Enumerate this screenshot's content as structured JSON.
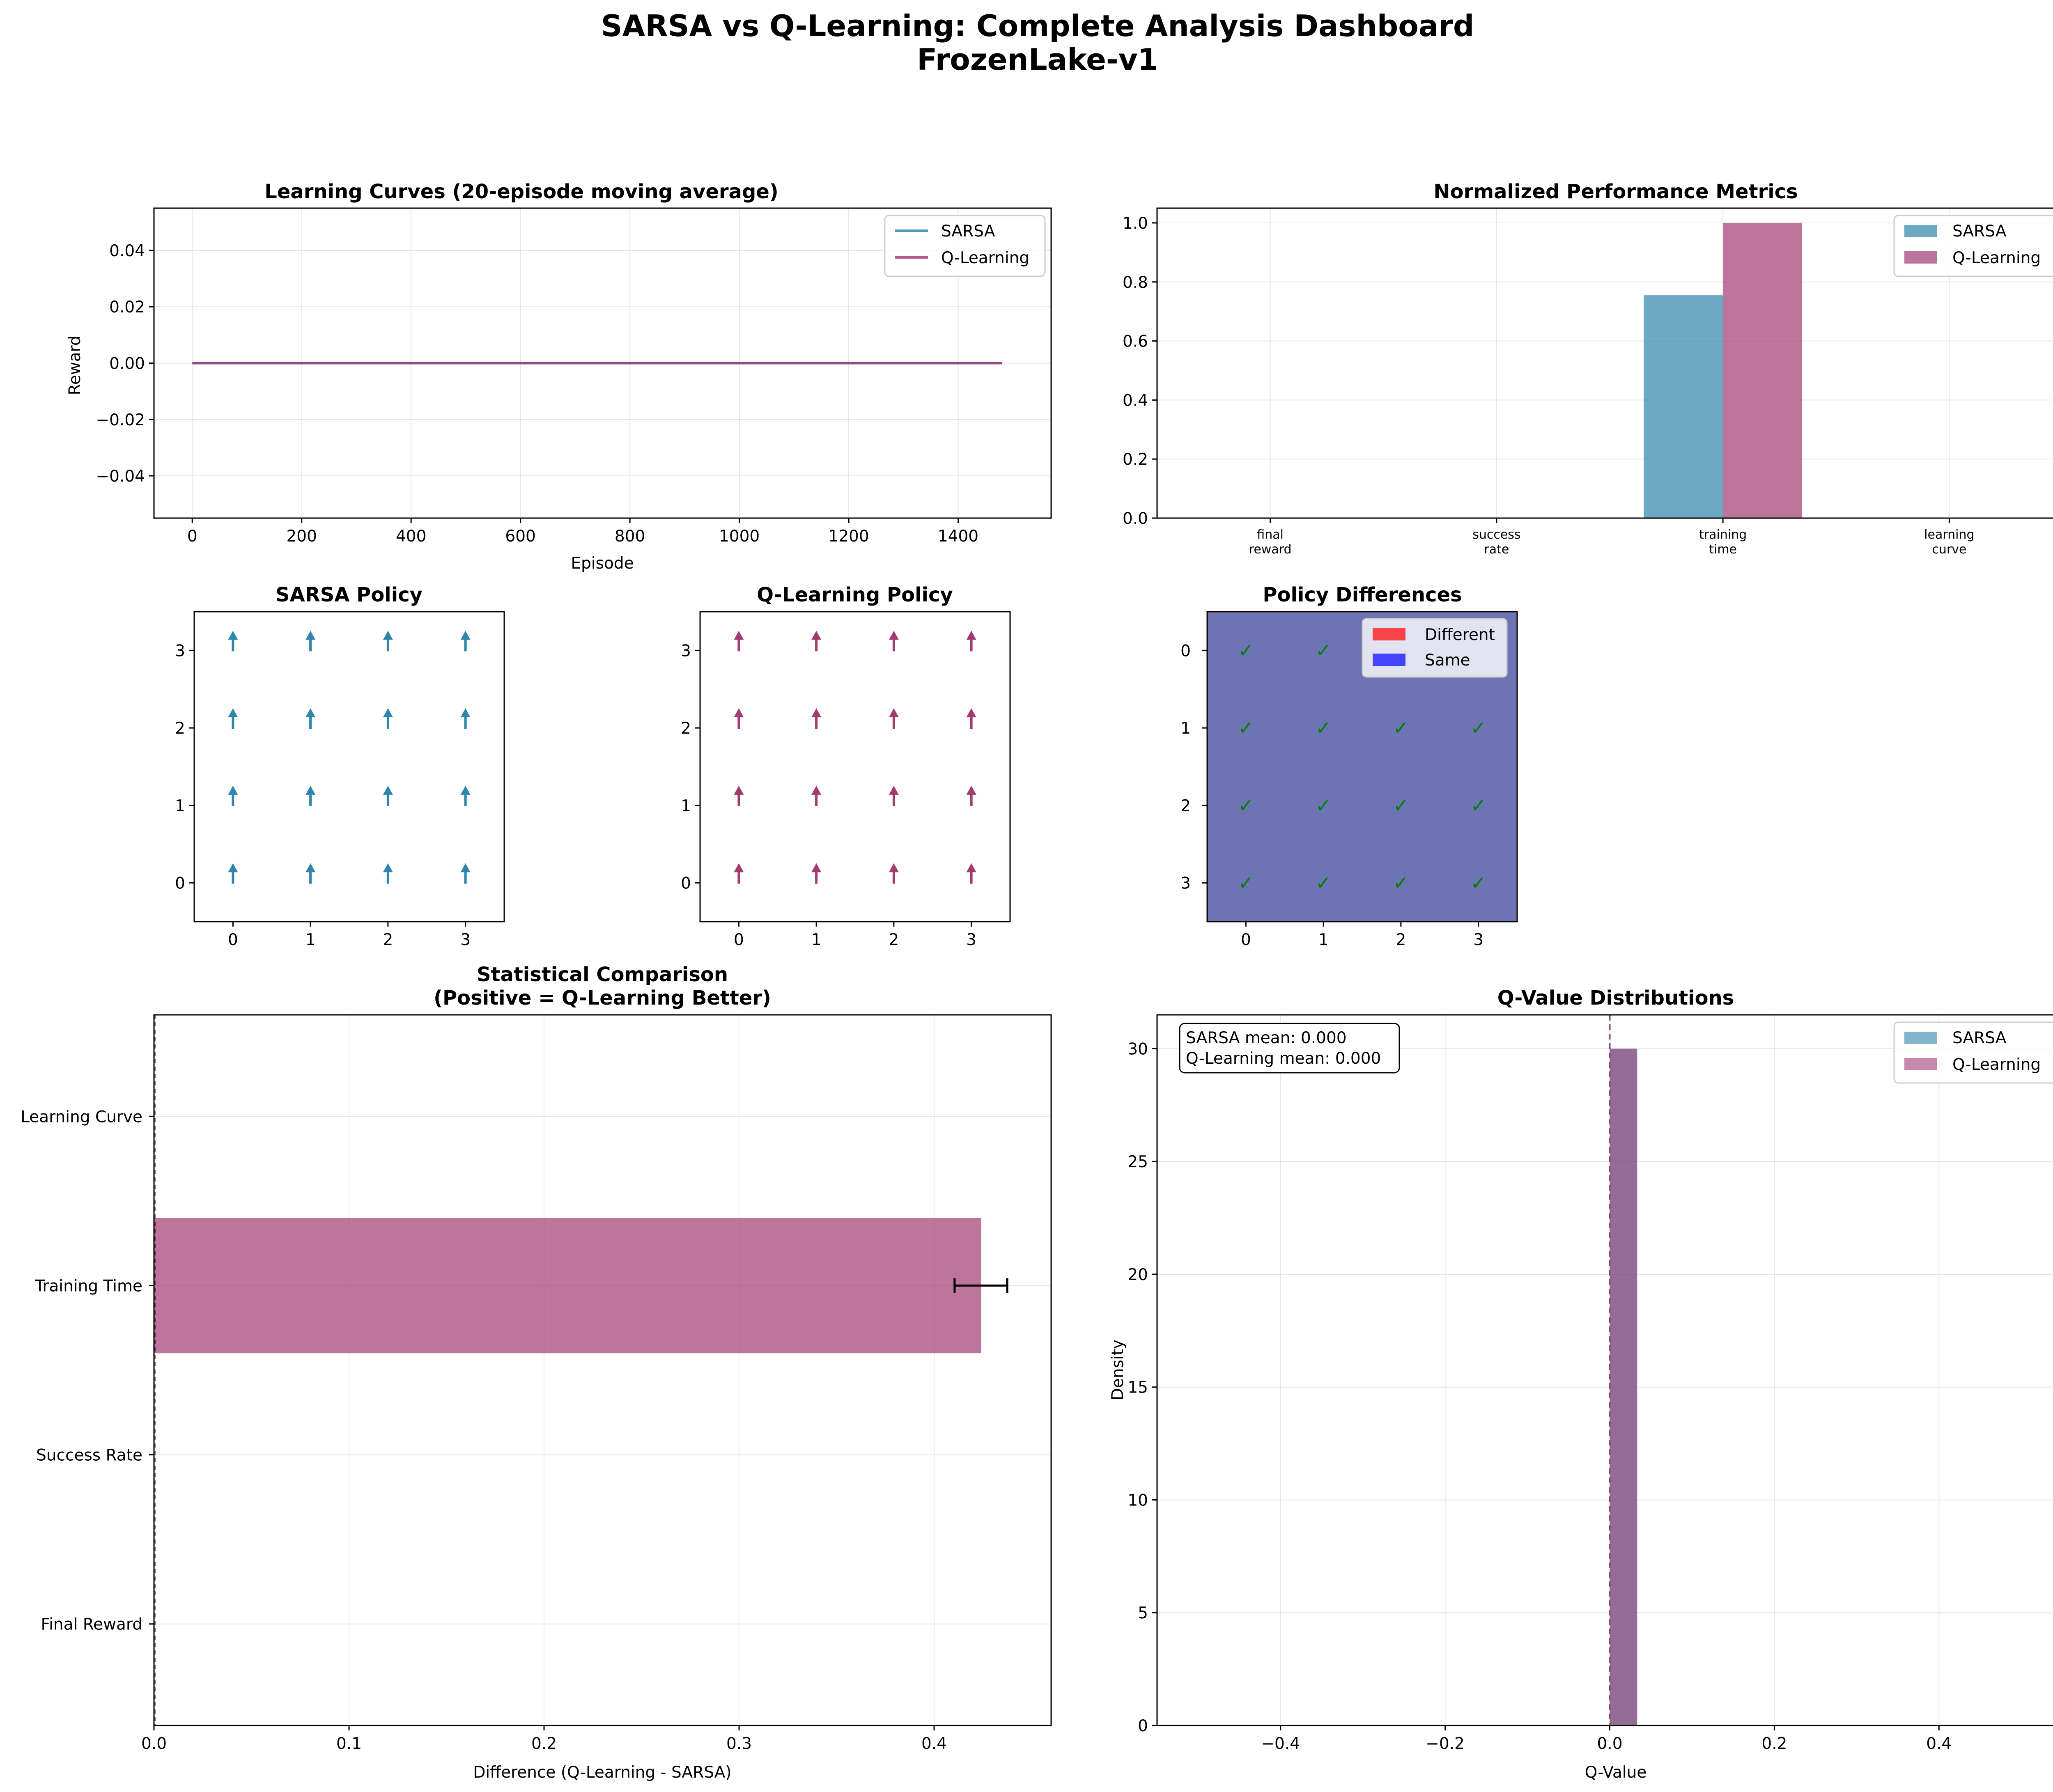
{
  "suptitle": {
    "line1": "SARSA vs Q-Learning: Complete Analysis Dashboard",
    "line2": "FrozenLake-v1"
  },
  "colors": {
    "sarsa": "#2E86AB",
    "qlearning": "#A23B72",
    "different": "#ff0000",
    "same": "#0000ff",
    "heat": "#6e73b4",
    "check": "#008000"
  },
  "chart_data": [
    {
      "id": "learning_curves",
      "type": "line",
      "title": "Learning Curves (20-episode moving average)",
      "xlabel": "Episode",
      "ylabel": "Reward",
      "xlim": [
        -70,
        1570
      ],
      "ylim": [
        -0.055,
        0.055
      ],
      "xticks": [
        0,
        200,
        400,
        600,
        800,
        1000,
        1200,
        1400
      ],
      "xtick_labels": [
        "0",
        "200",
        "400",
        "600",
        "800",
        "1000",
        "1200",
        "1400"
      ],
      "yticks": [
        -0.04,
        -0.02,
        0.0,
        0.02,
        0.04
      ],
      "ytick_labels": [
        "−0.04",
        "−0.02",
        "0.00",
        "0.02",
        "0.04"
      ],
      "grid": true,
      "legend": "top-right",
      "series": [
        {
          "name": "SARSA",
          "x": [
            0,
            1480
          ],
          "y": [
            0,
            0
          ],
          "color": "#2E86AB"
        },
        {
          "name": "Q-Learning",
          "x": [
            0,
            1480
          ],
          "y": [
            0,
            0
          ],
          "color": "#A23B72"
        }
      ]
    },
    {
      "id": "normalized_metrics",
      "type": "bar",
      "title": "Normalized Performance Metrics",
      "categories": [
        "final reward",
        "success rate",
        "training time",
        "learning curve"
      ],
      "category_labels": [
        [
          "final",
          "reward"
        ],
        [
          "success",
          "rate"
        ],
        [
          "training",
          "time"
        ],
        [
          "learning",
          "curve"
        ]
      ],
      "ylim": [
        0,
        1.05
      ],
      "yticks": [
        0.0,
        0.2,
        0.4,
        0.6,
        0.8,
        1.0
      ],
      "ytick_labels": [
        "0.0",
        "0.2",
        "0.4",
        "0.6",
        "0.8",
        "1.0"
      ],
      "grid": true,
      "legend": "top-right",
      "series": [
        {
          "name": "SARSA",
          "values": [
            0,
            0,
            0.755,
            0
          ],
          "color": "#2E86AB"
        },
        {
          "name": "Q-Learning",
          "values": [
            0,
            0,
            1.0,
            0
          ],
          "color": "#A23B72"
        }
      ]
    },
    {
      "id": "sarsa_policy",
      "type": "scatter",
      "title": "SARSA Policy",
      "xlim": [
        -0.5,
        3.5
      ],
      "ylim": [
        -0.5,
        3.5
      ],
      "ticks": [
        0,
        1,
        2,
        3
      ],
      "tick_labels": [
        "0",
        "1",
        "2",
        "3"
      ],
      "arrow_direction": "up",
      "grid_points": [
        [
          0,
          0
        ],
        [
          1,
          0
        ],
        [
          2,
          0
        ],
        [
          3,
          0
        ],
        [
          0,
          1
        ],
        [
          1,
          1
        ],
        [
          2,
          1
        ],
        [
          3,
          1
        ],
        [
          0,
          2
        ],
        [
          1,
          2
        ],
        [
          2,
          2
        ],
        [
          3,
          2
        ],
        [
          0,
          3
        ],
        [
          1,
          3
        ],
        [
          2,
          3
        ],
        [
          3,
          3
        ]
      ],
      "color": "#2E86AB"
    },
    {
      "id": "qlearning_policy",
      "type": "scatter",
      "title": "Q-Learning Policy",
      "xlim": [
        -0.5,
        3.5
      ],
      "ylim": [
        -0.5,
        3.5
      ],
      "ticks": [
        0,
        1,
        2,
        3
      ],
      "tick_labels": [
        "0",
        "1",
        "2",
        "3"
      ],
      "arrow_direction": "up",
      "grid_points": [
        [
          0,
          0
        ],
        [
          1,
          0
        ],
        [
          2,
          0
        ],
        [
          3,
          0
        ],
        [
          0,
          1
        ],
        [
          1,
          1
        ],
        [
          2,
          1
        ],
        [
          3,
          1
        ],
        [
          0,
          2
        ],
        [
          1,
          2
        ],
        [
          2,
          2
        ],
        [
          3,
          2
        ],
        [
          0,
          3
        ],
        [
          1,
          3
        ],
        [
          2,
          3
        ],
        [
          3,
          3
        ]
      ],
      "color": "#A23B72"
    },
    {
      "id": "policy_differences",
      "type": "heatmap",
      "title": "Policy Differences",
      "ticks": [
        0,
        1,
        2,
        3
      ],
      "tick_labels": [
        "0",
        "1",
        "2",
        "3"
      ],
      "matrix": [
        [
          0,
          0,
          0,
          0
        ],
        [
          0,
          0,
          0,
          0
        ],
        [
          0,
          0,
          0,
          0
        ],
        [
          0,
          0,
          0,
          0
        ]
      ],
      "checkmark": "✓",
      "checks": [
        [
          0,
          0
        ],
        [
          0,
          1
        ],
        [
          1,
          0
        ],
        [
          1,
          1
        ],
        [
          1,
          2
        ],
        [
          1,
          3
        ],
        [
          2,
          0
        ],
        [
          2,
          1
        ],
        [
          2,
          2
        ],
        [
          2,
          3
        ],
        [
          3,
          0
        ],
        [
          3,
          1
        ],
        [
          3,
          2
        ],
        [
          3,
          3
        ]
      ],
      "legend": "top-right",
      "legend_entries": [
        {
          "name": "Different",
          "color": "#ff0000"
        },
        {
          "name": "Same",
          "color": "#0000ff"
        }
      ]
    },
    {
      "id": "statistical_comparison",
      "type": "bar",
      "orientation": "horizontal",
      "title_line1": "Statistical Comparison",
      "title_line2": "(Positive = Q-Learning Better)",
      "xlabel": "Difference (Q-Learning - SARSA)",
      "categories": [
        "Final Reward",
        "Success Rate",
        "Training Time",
        "Learning Curve"
      ],
      "values": [
        0,
        0,
        0.424,
        0
      ],
      "errors": [
        0,
        0,
        0.0135,
        0
      ],
      "xlim": [
        0,
        0.46
      ],
      "xticks": [
        0.0,
        0.1,
        0.2,
        0.3,
        0.4
      ],
      "xtick_labels": [
        "0.0",
        "0.1",
        "0.2",
        "0.3",
        "0.4"
      ],
      "ylim": [
        -0.6,
        3.6
      ],
      "grid": true,
      "color": "#A23B72"
    },
    {
      "id": "qvalue_distributions",
      "type": "bar",
      "subtype": "histogram",
      "title": "Q-Value Distributions",
      "xlabel": "Q-Value",
      "ylabel": "Density",
      "xlim": [
        -0.55,
        0.55
      ],
      "ylim": [
        0,
        31.5
      ],
      "xticks": [
        -0.4,
        -0.2,
        0.0,
        0.2,
        0.4
      ],
      "xtick_labels": [
        "−0.4",
        "−0.2",
        "0.0",
        "0.2",
        "0.4"
      ],
      "yticks": [
        0,
        5,
        10,
        15,
        20,
        25,
        30
      ],
      "ytick_labels": [
        "0",
        "5",
        "10",
        "15",
        "20",
        "25",
        "30"
      ],
      "grid": true,
      "legend": "top-right",
      "series": [
        {
          "name": "SARSA",
          "bin_start": 0.0,
          "bin_end": 0.0333,
          "density": 30,
          "color": "#2E86AB"
        },
        {
          "name": "Q-Learning",
          "bin_start": 0.0,
          "bin_end": 0.0333,
          "density": 30,
          "color": "#A23B72"
        }
      ],
      "mean_line_x": 0.0,
      "stats_line1": "SARSA mean: 0.000",
      "stats_line2": "Q-Learning mean: 0.000"
    }
  ]
}
